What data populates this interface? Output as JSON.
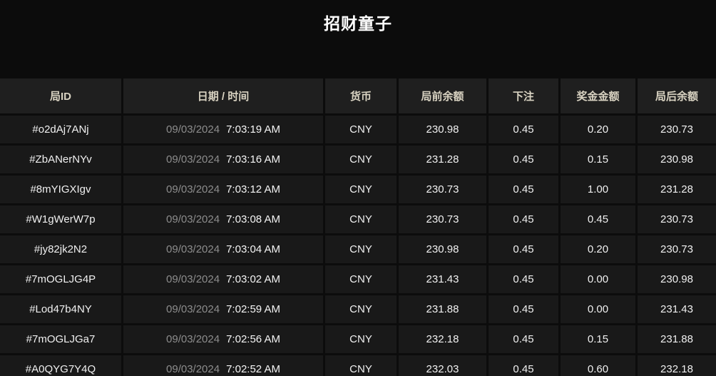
{
  "page": {
    "title": "招财童子"
  },
  "colors": {
    "page_background": "#0c0c0c",
    "cell_background": "#191919",
    "header_background": "#1f1f1f",
    "header_text": "#d9d3c2",
    "body_text": "#f0f0f0",
    "date_muted_text": "#8d8d8d"
  },
  "table": {
    "columns": [
      {
        "key": "round_id",
        "label": "局ID"
      },
      {
        "key": "datetime",
        "label": "日期 / 时间"
      },
      {
        "key": "currency",
        "label": "货币"
      },
      {
        "key": "balance_before",
        "label": "局前余额"
      },
      {
        "key": "bet",
        "label": "下注"
      },
      {
        "key": "prize",
        "label": "奖金金额"
      },
      {
        "key": "balance_after",
        "label": "局后余额"
      }
    ],
    "rows": [
      {
        "round_id": "#o2dAj7ANj",
        "date": "09/03/2024",
        "time": "7:03:19 AM",
        "currency": "CNY",
        "balance_before": "230.98",
        "bet": "0.45",
        "prize": "0.20",
        "balance_after": "230.73"
      },
      {
        "round_id": "#ZbANerNYv",
        "date": "09/03/2024",
        "time": "7:03:16 AM",
        "currency": "CNY",
        "balance_before": "231.28",
        "bet": "0.45",
        "prize": "0.15",
        "balance_after": "230.98"
      },
      {
        "round_id": "#8mYIGXIgv",
        "date": "09/03/2024",
        "time": "7:03:12 AM",
        "currency": "CNY",
        "balance_before": "230.73",
        "bet": "0.45",
        "prize": "1.00",
        "balance_after": "231.28"
      },
      {
        "round_id": "#W1gWerW7p",
        "date": "09/03/2024",
        "time": "7:03:08 AM",
        "currency": "CNY",
        "balance_before": "230.73",
        "bet": "0.45",
        "prize": "0.45",
        "balance_after": "230.73"
      },
      {
        "round_id": "#jy82jk2N2",
        "date": "09/03/2024",
        "time": "7:03:04 AM",
        "currency": "CNY",
        "balance_before": "230.98",
        "bet": "0.45",
        "prize": "0.20",
        "balance_after": "230.73"
      },
      {
        "round_id": "#7mOGLJG4P",
        "date": "09/03/2024",
        "time": "7:03:02 AM",
        "currency": "CNY",
        "balance_before": "231.43",
        "bet": "0.45",
        "prize": "0.00",
        "balance_after": "230.98"
      },
      {
        "round_id": "#Lod47b4NY",
        "date": "09/03/2024",
        "time": "7:02:59 AM",
        "currency": "CNY",
        "balance_before": "231.88",
        "bet": "0.45",
        "prize": "0.00",
        "balance_after": "231.43"
      },
      {
        "round_id": "#7mOGLJGa7",
        "date": "09/03/2024",
        "time": "7:02:56 AM",
        "currency": "CNY",
        "balance_before": "232.18",
        "bet": "0.45",
        "prize": "0.15",
        "balance_after": "231.88"
      },
      {
        "round_id": "#A0QYG7Y4Q",
        "date": "09/03/2024",
        "time": "7:02:52 AM",
        "currency": "CNY",
        "balance_before": "232.03",
        "bet": "0.45",
        "prize": "0.60",
        "balance_after": "232.18"
      }
    ]
  }
}
